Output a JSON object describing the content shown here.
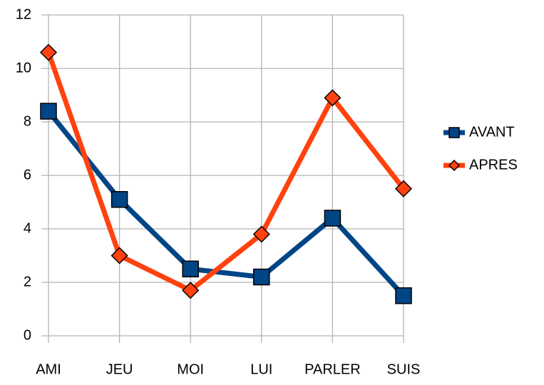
{
  "chart_data": {
    "type": "line",
    "categories": [
      "AMI",
      "JEU",
      "MOI",
      "LUI",
      "PARLER",
      "SUIS"
    ],
    "series": [
      {
        "name": "AVANT",
        "color": "#004586",
        "marker": "square",
        "values": [
          8.4,
          5.1,
          2.5,
          2.2,
          4.4,
          1.5
        ]
      },
      {
        "name": "APRES",
        "color": "#ff420e",
        "marker": "diamond",
        "values": [
          10.6,
          3.0,
          1.7,
          3.8,
          8.9,
          5.5
        ]
      }
    ],
    "ylim": [
      0,
      12
    ],
    "yticks": [
      0,
      2,
      4,
      6,
      8,
      10,
      12
    ],
    "grid": true,
    "legend": "right"
  }
}
